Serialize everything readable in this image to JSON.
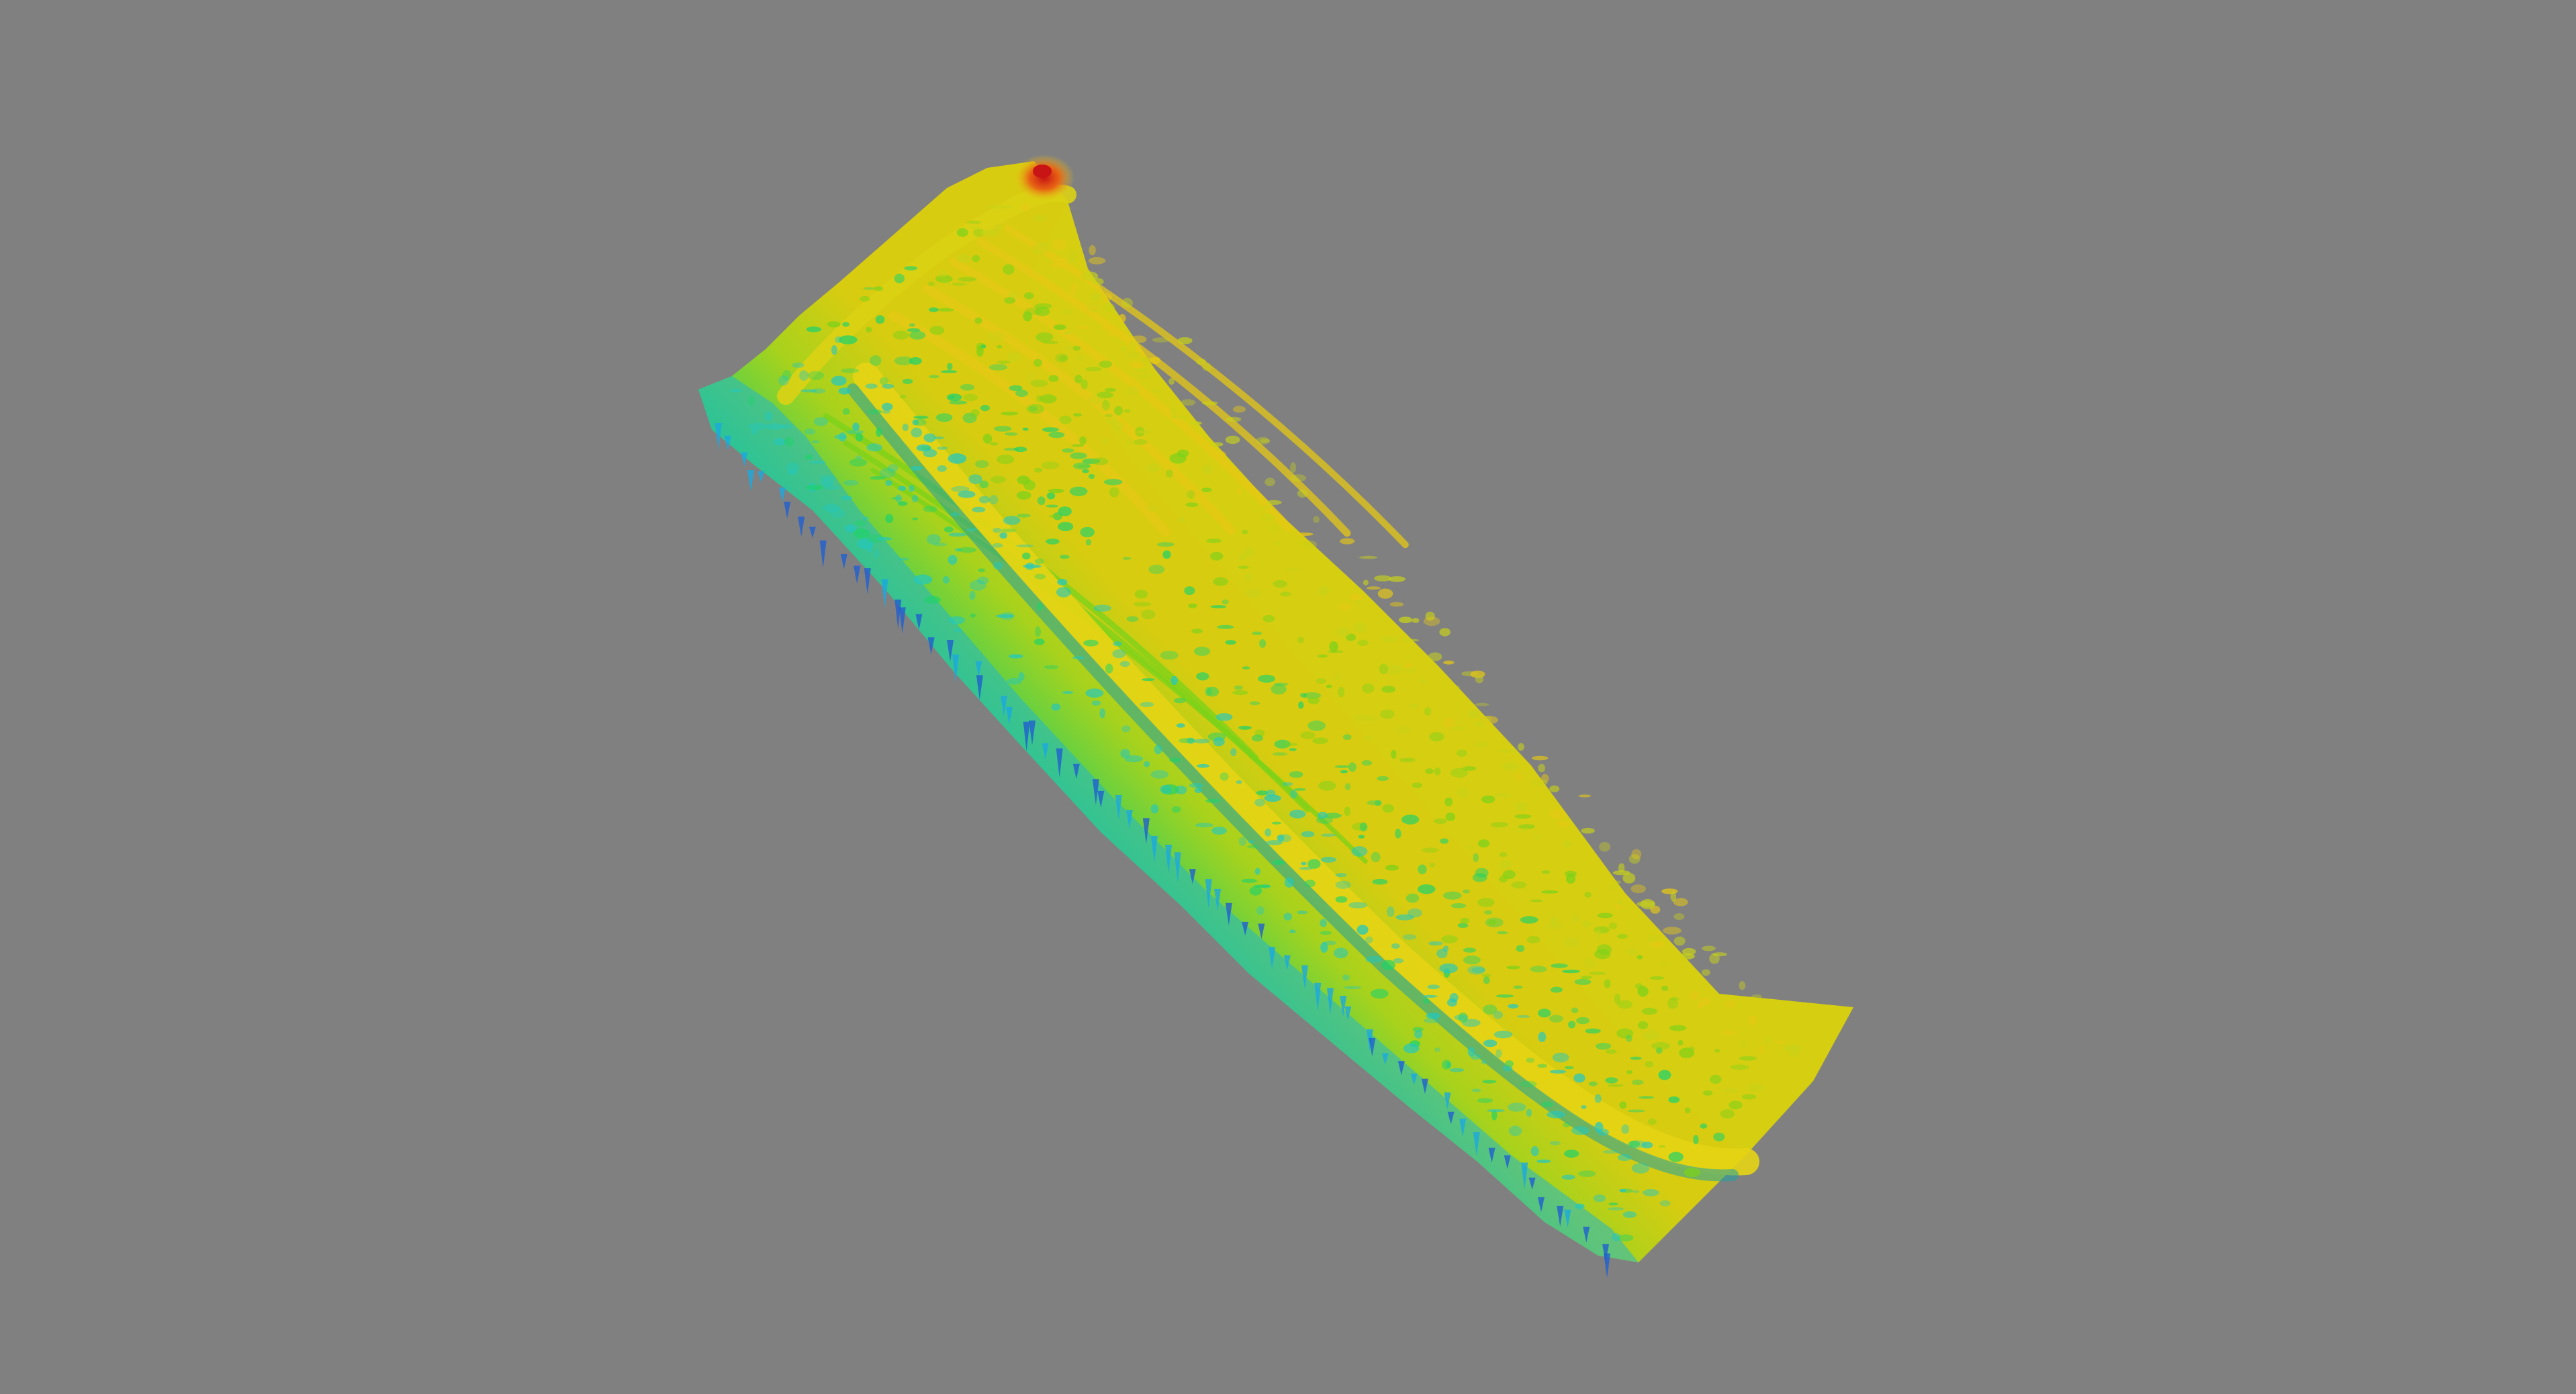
{
  "viewport": {
    "background_color": "#808080"
  },
  "surface": {
    "colormap": [
      "#1f5fd0",
      "#1aa9e0",
      "#22c8c0",
      "#1fd26a",
      "#7ad21a",
      "#c8d218",
      "#e6c814",
      "#e85a14",
      "#c81414"
    ],
    "colormap_name": "jet"
  }
}
